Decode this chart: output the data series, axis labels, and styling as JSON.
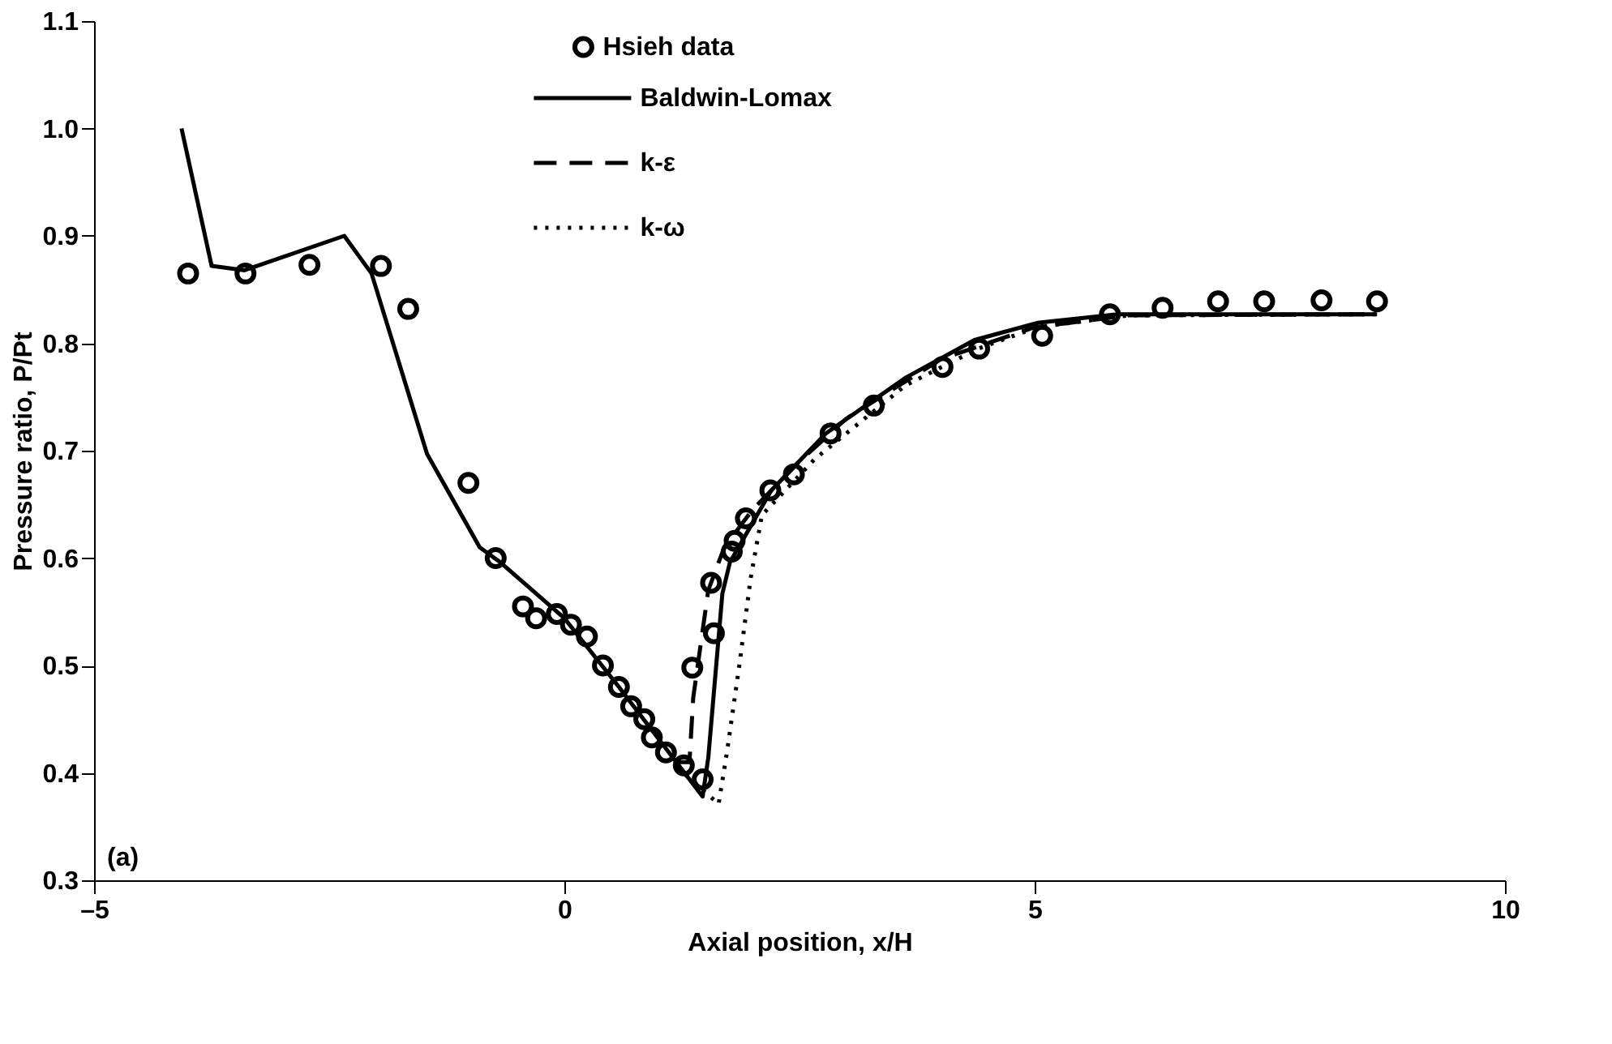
{
  "chart_data": {
    "type": "line",
    "xlabel": "Axial position, x/H",
    "ylabel": "Pressure ratio, P/Pt",
    "xlim": [
      -5,
      10
    ],
    "ylim": [
      0.3,
      1.1
    ],
    "xticks": [
      {
        "value": -5,
        "label": "–5"
      },
      0,
      5,
      10
    ],
    "yticks": [
      {
        "value": 0.3,
        "label": "0.3"
      },
      {
        "value": 0.4,
        "label": "0.4"
      },
      {
        "value": 0.5,
        "label": "0.5"
      },
      {
        "value": 0.6,
        "label": "0.6"
      },
      {
        "value": 0.7,
        "label": "0.7"
      },
      {
        "value": 0.8,
        "label": "0.8"
      },
      {
        "value": 0.9,
        "label": "0.9"
      },
      {
        "value": 1.0,
        "label": "1.0"
      },
      {
        "value": 1.1,
        "label": "1.1"
      }
    ],
    "grid": false,
    "legend": "top",
    "annotations": [
      "(a)"
    ],
    "series": [
      {
        "name": "Hsieh data",
        "type": "scatter",
        "marker": "circle",
        "color": "#000000",
        "x": [
          -4.0,
          -3.39,
          -2.71,
          -1.95,
          -1.66,
          -1.02,
          -0.73,
          -0.44,
          -0.3,
          -0.08,
          0.07,
          0.24,
          0.41,
          0.58,
          0.71,
          0.85,
          0.93,
          1.08,
          1.27,
          1.47,
          1.36,
          1.59,
          1.56,
          1.78,
          1.81,
          1.93,
          2.19,
          2.44,
          2.83,
          3.29,
          4.02,
          4.41,
          5.08,
          5.8,
          6.36,
          6.95,
          7.44,
          8.05,
          8.64
        ],
        "values": [
          0.865,
          0.865,
          0.873,
          0.872,
          0.832,
          0.67,
          0.6,
          0.555,
          0.544,
          0.548,
          0.538,
          0.527,
          0.5,
          0.48,
          0.462,
          0.45,
          0.433,
          0.419,
          0.407,
          0.394,
          0.498,
          0.53,
          0.577,
          0.606,
          0.616,
          0.637,
          0.663,
          0.678,
          0.716,
          0.742,
          0.778,
          0.795,
          0.807,
          0.827,
          0.833,
          0.839,
          0.839,
          0.84,
          0.839
        ]
      },
      {
        "name": "Baldwin-Lomax",
        "type": "line",
        "line_style": "solid",
        "color": "#000000",
        "x": [
          -4.07,
          -3.75,
          -3.4,
          -2.34,
          -2.05,
          -1.46,
          -0.9,
          -0.68,
          0,
          0.58,
          1.47,
          1.53,
          1.68,
          1.76,
          2.2,
          2.78,
          3.63,
          4.36,
          5.03,
          5.88,
          7.29,
          8.64
        ],
        "values": [
          1.0,
          0.872,
          0.868,
          0.9,
          0.865,
          0.697,
          0.61,
          0.596,
          0.544,
          0.48,
          0.378,
          0.414,
          0.567,
          0.596,
          0.663,
          0.716,
          0.768,
          0.803,
          0.819,
          0.827,
          0.827,
          0.827
        ]
      },
      {
        "name": "k-ε",
        "type": "line",
        "line_style": "dashed",
        "color": "#000000",
        "x": [
          1.2,
          1.33,
          1.37,
          1.45,
          1.53,
          1.7,
          2.0,
          2.5,
          3.0,
          4.0,
          5.0,
          6.0,
          8.64
        ],
        "values": [
          0.41,
          0.41,
          0.47,
          0.52,
          0.57,
          0.61,
          0.645,
          0.69,
          0.73,
          0.785,
          0.815,
          0.826,
          0.827
        ]
      },
      {
        "name": "k-ω",
        "type": "line",
        "line_style": "dotted",
        "color": "#000000",
        "x": [
          1.2,
          1.64,
          1.73,
          1.86,
          1.98,
          2.1,
          2.66,
          3.63,
          4.4,
          5.03,
          6.0,
          8.64
        ],
        "values": [
          0.405,
          0.371,
          0.42,
          0.5,
          0.581,
          0.64,
          0.692,
          0.761,
          0.795,
          0.815,
          0.826,
          0.827
        ]
      }
    ]
  }
}
